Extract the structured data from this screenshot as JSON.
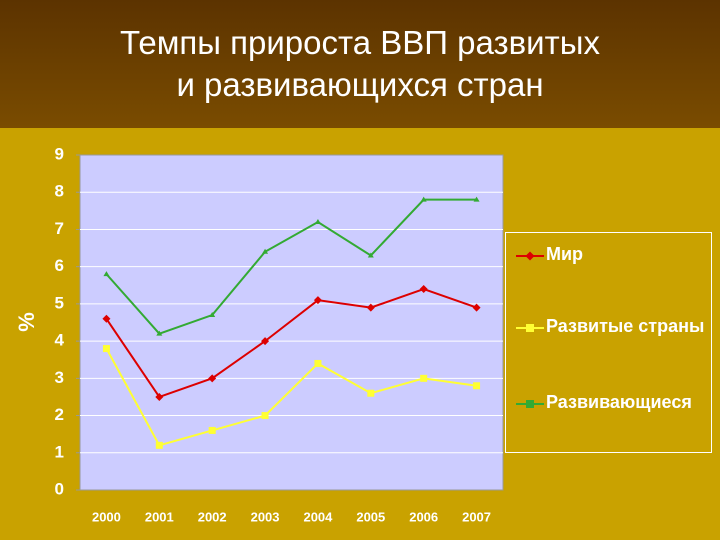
{
  "title": "Темпы прироста ВВП развитых\nи развивающихся стран",
  "chart_data": {
    "type": "line",
    "categories": [
      "2000",
      "2001",
      "2002",
      "2003",
      "2004",
      "2005",
      "2006",
      "2007"
    ],
    "y_label": "%",
    "series": [
      {
        "name": "Мир",
        "color": "#dd0000",
        "marker": "diamond",
        "values": [
          4.6,
          2.5,
          3.0,
          4.0,
          5.1,
          4.9,
          5.4,
          4.9
        ]
      },
      {
        "name": "Развитые страны",
        "color": "#ffff33",
        "marker": "square",
        "values": [
          3.8,
          1.2,
          1.6,
          2.0,
          3.4,
          2.6,
          3.0,
          2.8
        ]
      },
      {
        "name": "Развивающиеся",
        "color": "#33aa33",
        "marker": "triangle",
        "values": [
          5.8,
          4.2,
          4.7,
          6.4,
          7.2,
          6.3,
          7.8,
          7.8
        ]
      }
    ],
    "ylim": [
      0,
      9
    ],
    "yticks": [
      0,
      1,
      2,
      3,
      4,
      5,
      6,
      7,
      8,
      9
    ],
    "grid": true,
    "legend": "right"
  }
}
